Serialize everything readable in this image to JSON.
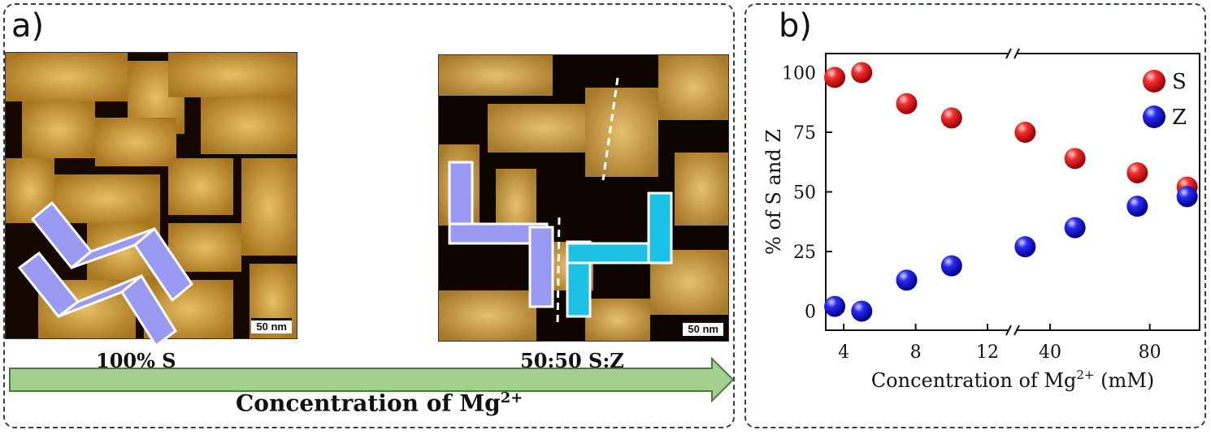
{
  "panel_a": {
    "label": "a)",
    "left_caption": "100% S",
    "right_caption": "50:50 S:Z",
    "scalebar_left": "50 nm",
    "scalebar_right": "50 nm",
    "arrow_text": "Concentration of Mg",
    "arrow_text_sup": "2+",
    "arrow_color": "#a3cf8f"
  },
  "panel_b": {
    "label": "b)"
  },
  "chart_data": {
    "type": "scatter",
    "xlabel": "Concentration of Mg",
    "xlabel_sup": "2+",
    "xlabel_suffix": " (mM)",
    "ylabel": "% of S and Z",
    "ylim": [
      -8,
      108
    ],
    "yticks": [
      0,
      25,
      50,
      75,
      100
    ],
    "x_segments": [
      {
        "range": [
          3,
          13.4
        ],
        "ticks": [
          4,
          8,
          12
        ]
      },
      {
        "range": [
          25,
          100
        ],
        "ticks": [
          40,
          80
        ]
      }
    ],
    "legend_position": "top-right",
    "series": [
      {
        "name": "S",
        "color": "#e01a1a",
        "x": [
          3.5,
          5,
          7.5,
          10,
          30,
          50,
          75,
          95
        ],
        "y": [
          98,
          100,
          87,
          81,
          75,
          64,
          58,
          52
        ]
      },
      {
        "name": "Z",
        "color": "#1a1ae0",
        "x": [
          3.5,
          5,
          7.5,
          10,
          30,
          50,
          75,
          95
        ],
        "y": [
          2,
          0,
          13,
          19,
          27,
          35,
          44,
          48
        ]
      }
    ]
  }
}
